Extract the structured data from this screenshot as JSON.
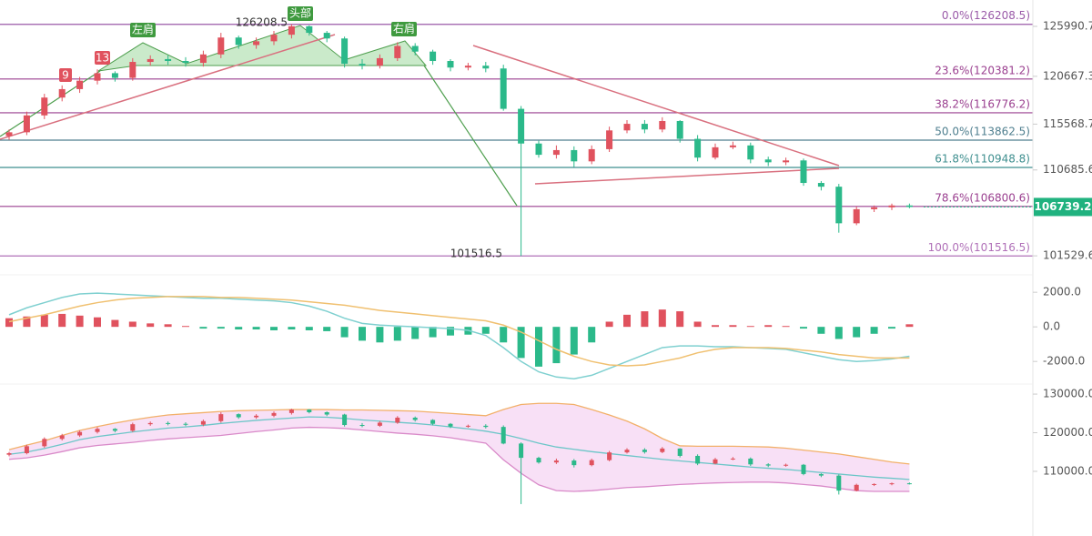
{
  "chart_data": [
    {
      "type": "candlestick",
      "open": [
        114300,
        114700,
        116500,
        118400,
        119300,
        120200,
        121000,
        120500,
        122200,
        122500,
        122300,
        122100,
        123000,
        124800,
        124000,
        124400,
        125100,
        126000,
        125300,
        124700,
        122000,
        121800,
        122600,
        123900,
        123300,
        122300,
        121600,
        121800,
        121500,
        117200,
        113500,
        112300,
        112800,
        111600,
        112900,
        114900,
        115600,
        115000,
        115900,
        114000,
        112000,
        113100,
        113300,
        111800,
        111500,
        111700,
        109300,
        108900,
        105000,
        106500,
        106700,
        106900
      ],
      "high": [
        115000,
        116900,
        118800,
        119700,
        120600,
        121400,
        121200,
        122600,
        122900,
        122900,
        122700,
        123400,
        125300,
        125000,
        124800,
        125500,
        126208.5,
        126100,
        125500,
        124900,
        122500,
        123000,
        124300,
        124200,
        123500,
        122500,
        122100,
        122200,
        121900,
        117500,
        113800,
        113300,
        113200,
        113300,
        115300,
        116000,
        116000,
        116300,
        116000,
        114400,
        113500,
        113700,
        113600,
        112100,
        112000,
        111900,
        109500,
        109200,
        106800,
        106900,
        107100,
        107100
      ],
      "low": [
        113900,
        114400,
        116100,
        118000,
        118900,
        119800,
        120100,
        120200,
        121800,
        121900,
        121700,
        121700,
        122600,
        123600,
        123600,
        124000,
        124700,
        125000,
        124300,
        121600,
        121400,
        121500,
        122300,
        122900,
        121900,
        121200,
        121300,
        121100,
        117000,
        101516.5,
        112000,
        111900,
        111000,
        111300,
        112600,
        114600,
        114600,
        114700,
        113600,
        111600,
        111800,
        112900,
        111400,
        111100,
        111200,
        109000,
        108500,
        104000,
        104800,
        106200,
        106400,
        106600
      ],
      "close": [
        114700,
        116500,
        118400,
        119300,
        120200,
        121000,
        120500,
        122200,
        122500,
        122300,
        122100,
        123000,
        124800,
        124000,
        124400,
        125100,
        126000,
        125300,
        124700,
        122000,
        121800,
        122600,
        123900,
        123300,
        122300,
        121600,
        121800,
        121500,
        117200,
        113500,
        112300,
        112800,
        111600,
        112900,
        114900,
        115600,
        115000,
        115900,
        114000,
        112000,
        113100,
        113300,
        111800,
        111500,
        111700,
        109300,
        108900,
        105000,
        106500,
        106700,
        106900,
        106739.2
      ],
      "up_color": "#e0525e",
      "down_color": "#2bb98a",
      "ylim": [
        99700,
        128800
      ],
      "yticks": [
        125990.7,
        120667.3,
        115568.7,
        110685.6,
        101529.6
      ],
      "fib_levels": [
        {
          "label": "0.0%(126208.5)",
          "value": 126208.5,
          "color": "#9a5aa8"
        },
        {
          "label": "23.6%(120381.2)",
          "value": 120381.2,
          "color": "#9a3f8f"
        },
        {
          "label": "38.2%(116776.2)",
          "value": 116776.2,
          "color": "#9a3f8f"
        },
        {
          "label": "50.0%(113862.5)",
          "value": 113862.5,
          "color": "#4f7f8f"
        },
        {
          "label": "61.8%(110948.8)",
          "value": 110948.8,
          "color": "#3f8f8f"
        },
        {
          "label": "78.6%(106800.6)",
          "value": 106800.6,
          "color": "#9a3f8f"
        },
        {
          "label": "100.0%(101516.5)",
          "value": 101516.5,
          "color": "#b070b8"
        }
      ],
      "current_price": 106739.2,
      "current_price_color": "#20b27f",
      "annotations": {
        "high_label": "126208.5",
        "low_label": "101516.5",
        "left_shoulder": "左肩",
        "head": "头部",
        "right_shoulder": "右肩",
        "count_9": "9",
        "count_13": "13"
      }
    },
    {
      "type": "macd",
      "histogram": {
        "up_color": "#e0525e",
        "down_color": "#2bb98a",
        "values": [
          500,
          600,
          700,
          750,
          650,
          550,
          400,
          300,
          200,
          150,
          50,
          -100,
          -100,
          -150,
          -150,
          -200,
          -150,
          -200,
          -250,
          -600,
          -800,
          -900,
          -800,
          -700,
          -600,
          -500,
          -450,
          -400,
          -900,
          -1800,
          -2300,
          -2100,
          -1600,
          -900,
          300,
          700,
          900,
          1000,
          900,
          300,
          100,
          100,
          50,
          100,
          50,
          -100,
          -400,
          -700,
          -600,
          -400,
          -100,
          150
        ]
      },
      "series": [
        {
          "color": "#7fd0d0",
          "values": [
            700,
            1100,
            1400,
            1700,
            1900,
            1950,
            1900,
            1850,
            1800,
            1750,
            1700,
            1650,
            1650,
            1600,
            1550,
            1500,
            1400,
            1200,
            900,
            500,
            200,
            100,
            50,
            0,
            -50,
            -100,
            -200,
            -500,
            -1200,
            -2000,
            -2600,
            -2900,
            -3000,
            -2800,
            -2400,
            -2000,
            -1600,
            -1200,
            -1100,
            -1100,
            -1150,
            -1150,
            -1200,
            -1250,
            -1300,
            -1500,
            -1700,
            -1900,
            -2000,
            -1950,
            -1850,
            -1700
          ]
        },
        {
          "color": "#f0c070",
          "values": [
            300,
            500,
            700,
            950,
            1200,
            1400,
            1550,
            1650,
            1700,
            1750,
            1750,
            1750,
            1700,
            1700,
            1650,
            1600,
            1550,
            1450,
            1350,
            1250,
            1100,
            950,
            850,
            750,
            650,
            550,
            450,
            350,
            100,
            -300,
            -800,
            -1300,
            -1700,
            -2000,
            -2200,
            -2250,
            -2200,
            -2000,
            -1800,
            -1500,
            -1300,
            -1200,
            -1200,
            -1200,
            -1250,
            -1350,
            -1450,
            -1600,
            -1700,
            -1800,
            -1800,
            -1800
          ]
        }
      ],
      "ylim": [
        -3200,
        2850
      ],
      "yticks": [
        {
          "value": 2000,
          "label": "2000.0"
        },
        {
          "value": 0,
          "label": "0.0"
        },
        {
          "value": -2000,
          "label": "-2000.0"
        }
      ]
    },
    {
      "type": "bollinger",
      "fill": "#f8e0f6",
      "series": [
        {
          "color": "#f2b06a",
          "values": [
            115600,
            116800,
            117900,
            119300,
            120600,
            121600,
            122500,
            123300,
            124000,
            124600,
            124900,
            125200,
            125500,
            125700,
            125800,
            125900,
            126000,
            126000,
            126000,
            125900,
            125900,
            125800,
            125700,
            125600,
            125300,
            125000,
            124700,
            124400,
            126000,
            127300,
            127600,
            127600,
            127300,
            126000,
            124600,
            123000,
            121000,
            118500,
            116600,
            116500,
            116500,
            116500,
            116400,
            116300,
            116000,
            115500,
            115000,
            114500,
            113800,
            113100,
            112400,
            111900
          ]
        },
        {
          "color": "#6cc6c8",
          "values": [
            114400,
            115000,
            115900,
            117000,
            118200,
            119000,
            119600,
            120200,
            120700,
            121200,
            121500,
            121900,
            122400,
            122800,
            123200,
            123500,
            123800,
            124100,
            124000,
            123700,
            123300,
            123000,
            122700,
            122400,
            122000,
            121500,
            121000,
            120400,
            119600,
            118500,
            117300,
            116300,
            115700,
            115100,
            114600,
            114100,
            113600,
            113100,
            112700,
            112300,
            111900,
            111500,
            111100,
            110800,
            110500,
            110100,
            109700,
            109300,
            108900,
            108500,
            108200,
            107900
          ]
        },
        {
          "color": "#d98ac9",
          "values": [
            113100,
            113500,
            114200,
            115100,
            116100,
            116700,
            117100,
            117500,
            118000,
            118400,
            118700,
            119000,
            119300,
            119800,
            120300,
            120700,
            121200,
            121400,
            121300,
            121100,
            120700,
            120300,
            119900,
            119600,
            119200,
            118700,
            118000,
            117300,
            113000,
            109500,
            106500,
            105000,
            104800,
            105000,
            105400,
            105800,
            106000,
            106300,
            106600,
            106800,
            107000,
            107100,
            107200,
            107200,
            107000,
            106600,
            106200,
            105600,
            105000,
            104800,
            104800,
            104800
          ]
        }
      ],
      "ylim": [
        94200,
        131900
      ],
      "yticks": [
        {
          "value": 130000,
          "label": "130000.0"
        },
        {
          "value": 120000,
          "label": "120000.0"
        },
        {
          "value": 110000,
          "label": "110000.0"
        }
      ]
    }
  ]
}
